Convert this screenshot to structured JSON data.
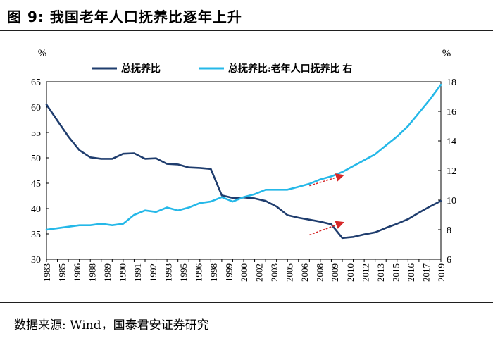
{
  "figure": {
    "title": "图 9:  我国老年人口抚养比逐年上升",
    "source": "数据来源:  Wind，国泰君安证券研究"
  },
  "chart_data": {
    "type": "line",
    "left_axis": {
      "unit": "%",
      "min": 30,
      "max": 65,
      "ticks": [
        30,
        35,
        40,
        45,
        50,
        55,
        60,
        65
      ]
    },
    "right_axis": {
      "unit": "%",
      "min": 6,
      "max": 18,
      "ticks": [
        6,
        8,
        10,
        12,
        14,
        16,
        18
      ]
    },
    "x": [
      1983,
      1984,
      1985,
      1986,
      1987,
      1988,
      1989,
      1990,
      1991,
      1992,
      1993,
      1994,
      1995,
      1996,
      1997,
      1998,
      1999,
      2000,
      2001,
      2002,
      2003,
      2004,
      2005,
      2006,
      2007,
      2008,
      2009,
      2010,
      2011,
      2012,
      2013,
      2014,
      2015,
      2016,
      2017,
      2018,
      2019
    ],
    "x_tick_labels": [
      "1983",
      "1985",
      "1986",
      "1988",
      "1989",
      "1990",
      "1991",
      "1992",
      "1993",
      "1995",
      "1996",
      "1998",
      "1999",
      "2000",
      "2002",
      "2003",
      "2005",
      "2006",
      "2008",
      "2009",
      "2010",
      "2012",
      "2013",
      "2015",
      "2016",
      "2017",
      "2019"
    ],
    "series": [
      {
        "name": "总抚养比",
        "axis": "left",
        "color": "#1f3d6e",
        "values": [
          60.5,
          57.3,
          54.2,
          51.5,
          50.1,
          49.8,
          49.8,
          50.8,
          50.9,
          49.8,
          49.9,
          48.8,
          48.7,
          48.1,
          48.0,
          47.8,
          42.6,
          42.1,
          42.2,
          42.0,
          41.5,
          40.4,
          38.7,
          38.2,
          37.8,
          37.4,
          36.9,
          34.2,
          34.4,
          34.9,
          35.3,
          36.2,
          37.0,
          37.9,
          39.2,
          40.4,
          41.5
        ]
      },
      {
        "name": "总抚养比:老年人口抚养比 右",
        "axis": "right",
        "color": "#25b8e8",
        "values": [
          8.0,
          8.1,
          8.2,
          8.3,
          8.3,
          8.4,
          8.3,
          8.4,
          9.0,
          9.3,
          9.2,
          9.5,
          9.3,
          9.5,
          9.8,
          9.9,
          10.2,
          9.9,
          10.2,
          10.4,
          10.7,
          10.7,
          10.7,
          10.9,
          11.1,
          11.4,
          11.6,
          11.9,
          12.3,
          12.7,
          13.1,
          13.7,
          14.3,
          15.0,
          15.9,
          16.8,
          17.8
        ]
      }
    ],
    "annotations": [
      {
        "type": "arrow",
        "color": "#d62728",
        "style": "dashed",
        "from": [
          2007,
          44.5
        ],
        "to": [
          2010,
          46.5
        ],
        "axis": "left"
      },
      {
        "type": "arrow",
        "color": "#d62728",
        "style": "dashed",
        "from": [
          2007,
          34.8
        ],
        "to": [
          2010,
          37.2
        ],
        "axis": "left"
      }
    ]
  }
}
